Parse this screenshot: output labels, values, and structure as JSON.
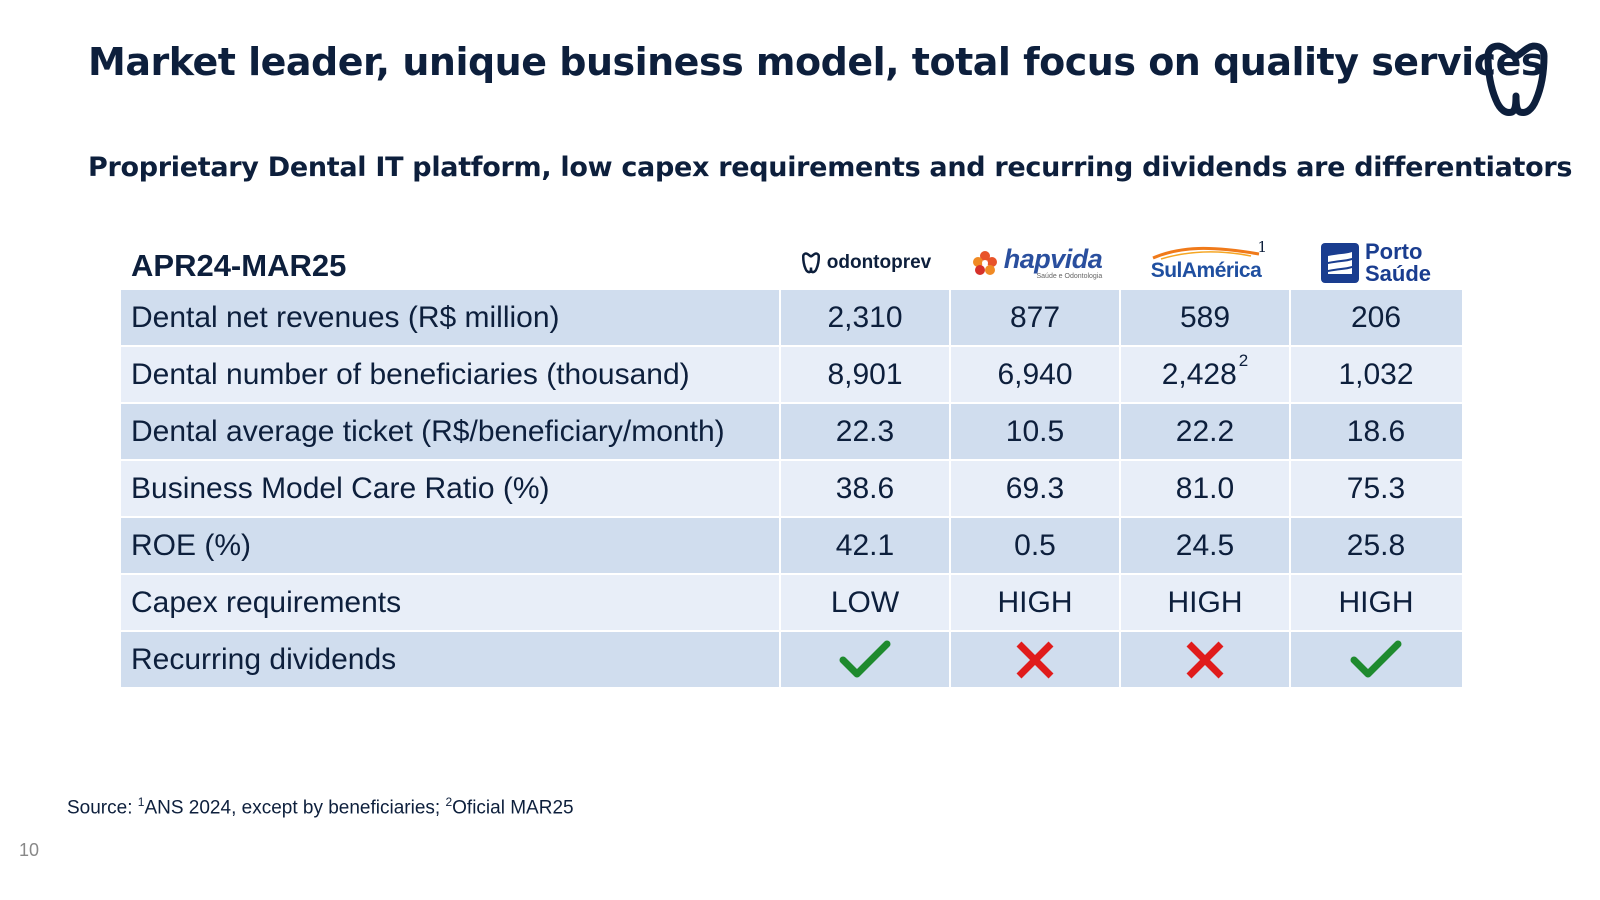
{
  "header": {
    "title": "Market leader, unique business model, total focus on quality services",
    "subtitle": "Proprietary Dental IT platform, low capex requirements and recurring dividends are differentiators"
  },
  "table": {
    "period": "APR24-MAR25",
    "companies": [
      {
        "name": "odontoprev",
        "sup": ""
      },
      {
        "name": "hapvida",
        "tagline": "Saúde e Odontologia",
        "sup": ""
      },
      {
        "name": "SulAmérica",
        "sup": "1"
      },
      {
        "name_line1": "Porto",
        "name_line2": "Saúde",
        "sup": ""
      }
    ],
    "rows": [
      {
        "label": "Dental net revenues (R$ million)",
        "values": [
          "2,310",
          "877",
          "589",
          "206"
        ]
      },
      {
        "label": "Dental number of beneficiaries (thousand)",
        "values": [
          "8,901",
          "6,940",
          "2,428",
          "1,032"
        ],
        "value_sup": [
          "",
          "",
          "2",
          ""
        ]
      },
      {
        "label": "Dental average ticket (R$/beneficiary/month)",
        "values": [
          "22.3",
          "10.5",
          "22.2",
          "18.6"
        ]
      },
      {
        "label": "Business Model Care Ratio (%)",
        "values": [
          "38.6",
          "69.3",
          "81.0",
          "75.3"
        ]
      },
      {
        "label": "ROE (%)",
        "values": [
          "42.1",
          "0.5",
          "24.5",
          "25.8"
        ]
      },
      {
        "label": "Capex requirements",
        "values": [
          "LOW",
          "HIGH",
          "HIGH",
          "HIGH"
        ]
      },
      {
        "label": "Recurring dividends",
        "icons": [
          "check-icon",
          "cross-icon",
          "cross-icon",
          "check-icon"
        ]
      }
    ]
  },
  "footnote": {
    "prefix": "Source: ",
    "sup1": "1",
    "text1": "ANS 2024, except by beneficiaries; ",
    "sup2": "2",
    "text2": "Oficial MAR25"
  },
  "page_number": "10",
  "colors": {
    "navy": "#0d1f3c",
    "row_dark": "#d0ddee",
    "row_light": "#e8eef8",
    "check": "#1e8a2e",
    "cross": "#e01b1b"
  }
}
